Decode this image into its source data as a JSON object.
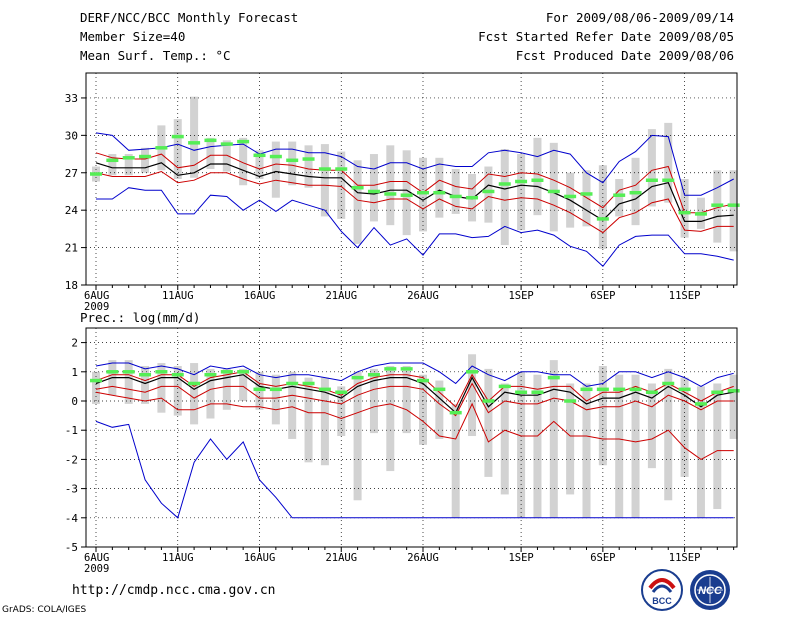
{
  "header": {
    "title": "DERF/NCC/BCC Monthly Forecast",
    "member_size": "Member Size=40",
    "variable1": "Mean Surf. Temp.: °C",
    "period": "For 2009/08/06-2009/09/14",
    "started": "Fcst Started Refer Date 2009/08/05",
    "produced": "Fcst Produced Date 2009/08/06"
  },
  "footer": {
    "url": "http://cmdp.ncc.cma.gov.cn",
    "grads": "GrADS: COLA/IGES",
    "logo_left_text": "BCC",
    "logo_right_text": "NCC"
  },
  "colors": {
    "box": "#d2d2d2",
    "median": "#55ee55",
    "max_min": "#0000cc",
    "spread": "#cc0000",
    "mean": "#000000"
  },
  "chart_data": [
    {
      "type": "line",
      "title": "Mean Surf. Temp.: °C",
      "x_ticks": [
        "6AUG\n2009",
        "11AUG",
        "16AUG",
        "21AUG",
        "26AUG",
        "1SEP",
        "6SEP",
        "11SEP"
      ],
      "tick_day_index": [
        0,
        5,
        10,
        15,
        20,
        26,
        31,
        36
      ],
      "ylim": [
        18,
        35
      ],
      "y_ticks": [
        18,
        21,
        24,
        27,
        30,
        33
      ],
      "days": 40,
      "series": [
        {
          "name": "max",
          "values": [
            30.2,
            30.0,
            28.8,
            28.9,
            29.0,
            29.3,
            28.8,
            29.1,
            29.2,
            29.3,
            28.5,
            28.9,
            28.9,
            28.6,
            28.6,
            28.3,
            27.5,
            27.3,
            27.8,
            27.8,
            27.3,
            27.7,
            27.5,
            27.5,
            28.6,
            28.8,
            28.6,
            28.3,
            28.8,
            28.5,
            27.0,
            26.2,
            27.9,
            28.7,
            30.0,
            29.9,
            25.2,
            25.2,
            25.8,
            26.5
          ]
        },
        {
          "name": "plus_sd",
          "values": [
            28.6,
            28.2,
            28.1,
            28.1,
            28.5,
            27.4,
            27.6,
            28.4,
            28.4,
            27.8,
            27.3,
            27.7,
            27.6,
            27.3,
            27.2,
            27.2,
            26.0,
            26.0,
            26.3,
            26.3,
            25.4,
            26.4,
            25.9,
            25.7,
            26.9,
            26.7,
            27.0,
            26.9,
            26.4,
            25.8,
            25.0,
            24.2,
            25.6,
            26.0,
            27.2,
            27.5,
            23.8,
            23.8,
            24.2,
            24.5
          ]
        },
        {
          "name": "mean",
          "values": [
            27.8,
            27.4,
            27.4,
            27.4,
            27.8,
            26.8,
            27.0,
            27.7,
            27.7,
            27.2,
            26.7,
            27.1,
            26.9,
            26.7,
            26.6,
            26.6,
            25.4,
            25.3,
            25.6,
            25.6,
            24.8,
            25.6,
            25.1,
            24.9,
            26.0,
            25.7,
            26.0,
            25.9,
            25.4,
            24.8,
            24.0,
            23.2,
            24.5,
            24.9,
            25.9,
            26.2,
            23.1,
            23.1,
            23.5,
            23.6
          ]
        },
        {
          "name": "minus_sd",
          "values": [
            27.0,
            26.7,
            26.7,
            26.7,
            27.1,
            26.2,
            26.4,
            27.0,
            27.0,
            26.5,
            26.1,
            26.4,
            26.2,
            26.0,
            26.0,
            25.9,
            24.8,
            24.6,
            24.9,
            24.9,
            24.1,
            24.9,
            24.3,
            24.1,
            25.1,
            24.8,
            25.0,
            24.9,
            24.4,
            23.8,
            23.0,
            22.2,
            23.4,
            23.8,
            24.6,
            24.9,
            22.4,
            22.3,
            22.7,
            22.7
          ]
        },
        {
          "name": "min",
          "values": [
            24.9,
            24.9,
            25.8,
            25.6,
            25.6,
            23.7,
            23.7,
            25.2,
            25.1,
            24.0,
            24.8,
            23.9,
            24.8,
            24.4,
            24.0,
            22.3,
            21.0,
            22.6,
            21.2,
            21.7,
            20.4,
            22.1,
            22.1,
            21.8,
            21.9,
            22.7,
            22.2,
            22.4,
            22.0,
            21.1,
            20.7,
            19.5,
            21.2,
            21.9,
            22.0,
            22.0,
            20.5,
            20.5,
            20.3,
            20.0
          ]
        },
        {
          "name": "median",
          "values": [
            26.9,
            28.0,
            28.2,
            28.3,
            29.0,
            29.9,
            29.4,
            29.6,
            29.3,
            29.5,
            28.4,
            28.3,
            28.0,
            28.1,
            27.3,
            27.3,
            25.8,
            25.5,
            25.3,
            25.2,
            25.4,
            25.4,
            25.1,
            25.0,
            25.5,
            26.1,
            26.3,
            26.4,
            25.5,
            25.1,
            25.3,
            23.3,
            25.2,
            25.4,
            26.4,
            26.4,
            23.8,
            23.7,
            24.4,
            24.4
          ]
        }
      ],
      "box_top": [
        27.5,
        28.5,
        28.5,
        29.0,
        30.8,
        31.3,
        33.1,
        29.8,
        29.6,
        29.8,
        28.8,
        29.5,
        29.5,
        29.2,
        29.3,
        28.7,
        28.0,
        28.5,
        29.2,
        28.8,
        28.2,
        28.2,
        27.3,
        26.9,
        27.5,
        28.9,
        28.5,
        29.8,
        29.4,
        27.0,
        27.2,
        27.6,
        26.5,
        28.2,
        30.5,
        31.0,
        26.5,
        25.0,
        27.2,
        27.2
      ],
      "box_bottom": [
        26.3,
        26.8,
        26.8,
        27.0,
        27.2,
        26.5,
        26.6,
        27.3,
        27.1,
        26.0,
        26.5,
        25.0,
        26.0,
        25.8,
        23.5,
        23.3,
        21.3,
        23.1,
        22.8,
        22.0,
        22.3,
        23.4,
        23.7,
        23.1,
        23.0,
        21.2,
        22.4,
        23.6,
        22.3,
        22.6,
        22.7,
        20.9,
        23.5,
        22.8,
        24.3,
        24.6,
        21.8,
        22.5,
        21.4,
        20.7
      ]
    },
    {
      "type": "line",
      "title": "Prec.: log(mm/d)",
      "x_ticks": [
        "6AUG\n2009",
        "11AUG",
        "16AUG",
        "21AUG",
        "26AUG",
        "1SEP",
        "6SEP",
        "11SEP"
      ],
      "tick_day_index": [
        0,
        5,
        10,
        15,
        20,
        26,
        31,
        36
      ],
      "ylim": [
        -5,
        2.5
      ],
      "y_ticks": [
        -5,
        -4,
        -3,
        -2,
        -1,
        0,
        1,
        2
      ],
      "days": 40,
      "series": [
        {
          "name": "max",
          "values": [
            1.2,
            1.3,
            1.3,
            1.1,
            1.2,
            1.1,
            0.9,
            1.2,
            1.1,
            1.2,
            0.9,
            0.8,
            0.9,
            0.9,
            0.8,
            0.7,
            1.0,
            1.2,
            1.3,
            1.3,
            1.3,
            1.0,
            0.6,
            1.2,
            0.9,
            0.7,
            1.0,
            1.0,
            0.9,
            0.9,
            0.5,
            0.6,
            1.0,
            1.0,
            0.8,
            1.0,
            0.8,
            0.5,
            0.8,
            0.95
          ]
        },
        {
          "name": "plus_sd",
          "values": [
            0.7,
            0.9,
            0.9,
            0.7,
            0.9,
            0.9,
            0.5,
            0.8,
            0.9,
            1.0,
            0.6,
            0.5,
            0.6,
            0.5,
            0.4,
            0.2,
            0.6,
            0.8,
            0.9,
            0.9,
            0.8,
            0.3,
            -0.2,
            0.9,
            0.0,
            0.5,
            0.5,
            0.4,
            0.5,
            0.5,
            0.0,
            0.3,
            0.3,
            0.5,
            0.3,
            0.6,
            0.3,
            0.0,
            0.3,
            0.5
          ]
        },
        {
          "name": "mean",
          "values": [
            0.6,
            0.8,
            0.8,
            0.6,
            0.8,
            0.8,
            0.4,
            0.7,
            0.8,
            0.9,
            0.5,
            0.4,
            0.5,
            0.4,
            0.3,
            0.1,
            0.5,
            0.7,
            0.8,
            0.8,
            0.6,
            0.1,
            -0.4,
            0.8,
            -0.2,
            0.3,
            0.2,
            0.2,
            0.4,
            0.3,
            -0.1,
            0.1,
            0.1,
            0.3,
            0.1,
            0.5,
            0.2,
            -0.2,
            0.2,
            0.3
          ]
        },
        {
          "name": "minus_sd",
          "values": [
            0.4,
            0.5,
            0.4,
            0.3,
            0.5,
            0.5,
            0.1,
            0.4,
            0.5,
            0.5,
            0.1,
            0.1,
            0.2,
            0.1,
            0.0,
            -0.1,
            0.2,
            0.4,
            0.5,
            0.5,
            0.4,
            -0.1,
            -0.5,
            0.6,
            -0.4,
            0.0,
            -0.1,
            -0.1,
            0.1,
            0.0,
            -0.3,
            -0.2,
            -0.2,
            0.0,
            -0.2,
            0.2,
            0.0,
            -0.3,
            0.0,
            0.0
          ]
        },
        {
          "name": "min_upper",
          "values": [
            0.3,
            0.2,
            0.1,
            0.0,
            0.1,
            -0.3,
            -0.3,
            -0.1,
            -0.1,
            -0.2,
            -0.2,
            -0.3,
            -0.2,
            -0.4,
            -0.4,
            -0.6,
            -0.4,
            -0.2,
            -0.1,
            -0.3,
            -0.7,
            -1.2,
            -1.3,
            -0.1,
            -1.4,
            -1.0,
            -1.2,
            -1.2,
            -0.7,
            -1.2,
            -1.2,
            -1.3,
            -1.3,
            -1.4,
            -1.3,
            -1.0,
            -1.6,
            -2.0,
            -1.7,
            -1.7
          ]
        },
        {
          "name": "min",
          "values": [
            -0.7,
            -0.9,
            -0.8,
            -2.7,
            -3.5,
            -4.0,
            -2.1,
            -1.3,
            -2.0,
            -1.4,
            -2.7,
            -3.3,
            -4.0,
            -4.0,
            -4.0,
            -4.0,
            -4.0,
            -4.0,
            -4.0,
            -4.0,
            -4.0,
            -4.0,
            -4.0,
            -4.0,
            -4.0,
            -4.0,
            -4.0,
            -4.0,
            -4.0,
            -4.0,
            -4.0,
            -4.0,
            -4.0,
            -4.0,
            -4.0,
            -4.0,
            -4.0,
            -4.0,
            -4.0,
            -4.0
          ]
        },
        {
          "name": "median",
          "values": [
            0.7,
            1.0,
            1.0,
            0.9,
            1.0,
            0.9,
            0.6,
            0.9,
            1.0,
            1.0,
            0.4,
            0.4,
            0.6,
            0.6,
            0.4,
            0.3,
            0.8,
            0.9,
            1.1,
            1.1,
            0.7,
            0.4,
            -0.4,
            1.0,
            0.0,
            0.5,
            0.3,
            0.3,
            0.8,
            0.0,
            0.4,
            0.4,
            0.4,
            0.4,
            0.3,
            0.6,
            0.4,
            -0.1,
            0.3,
            0.35
          ]
        }
      ],
      "box_top": [
        1.0,
        1.4,
        1.4,
        1.2,
        1.3,
        1.2,
        1.3,
        1.1,
        1.1,
        1.1,
        1.0,
        0.9,
        1.0,
        0.8,
        0.8,
        0.5,
        1.0,
        1.1,
        1.2,
        1.2,
        0.9,
        0.7,
        -0.1,
        1.6,
        1.1,
        0.6,
        1.0,
        0.9,
        1.4,
        0.6,
        0.6,
        1.2,
        0.9,
        0.9,
        0.6,
        1.1,
        0.8,
        0.5,
        0.6,
        0.9
      ],
      "box_bottom": [
        -0.1,
        0.2,
        -0.1,
        -0.1,
        -0.4,
        -0.5,
        -0.8,
        -0.6,
        -0.3,
        0.0,
        -0.3,
        -0.8,
        -1.3,
        -2.1,
        -2.2,
        -1.2,
        -3.4,
        -1.1,
        -2.4,
        -1.1,
        -1.5,
        -1.3,
        -4.0,
        -1.2,
        -2.6,
        -3.2,
        -4.0,
        -4.0,
        -4.0,
        -3.2,
        -4.0,
        -2.2,
        -4.0,
        -4.0,
        -2.3,
        -3.4,
        -2.6,
        -4.0,
        -3.7,
        -1.3
      ]
    }
  ]
}
